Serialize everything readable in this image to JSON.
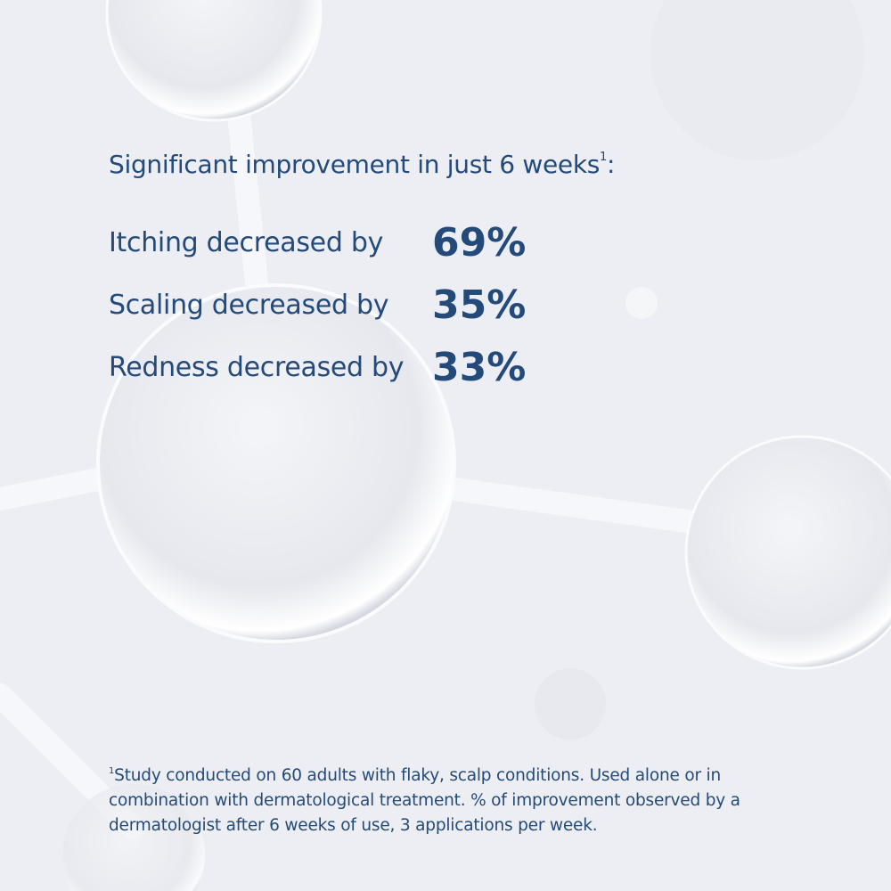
{
  "heading": {
    "text": "Significant improvement in just 6 weeks",
    "note_mark": "1",
    "suffix": ":"
  },
  "results": [
    {
      "label": "Itching decreased by",
      "value": "69%"
    },
    {
      "label": "Scaling decreased by",
      "value": "35%"
    },
    {
      "label": "Redness decreased by",
      "value": "33%"
    }
  ],
  "footnote": {
    "note_mark": "1",
    "text": "Study conducted on 60 adults with flaky, scalp conditions. Used alone or in combination with dermatological treatment. % of improvement observed by a dermatologist after 6 weeks of use, 3 applications per week."
  }
}
